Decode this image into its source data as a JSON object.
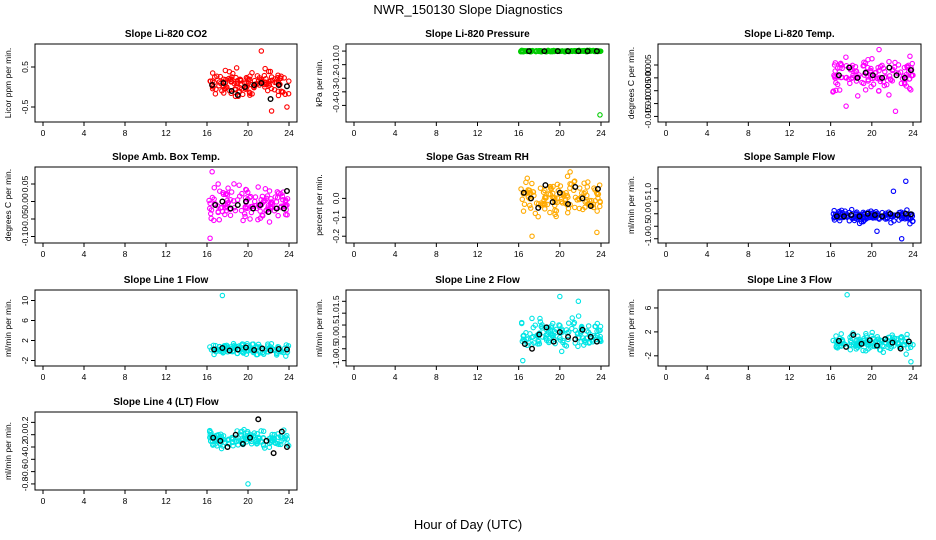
{
  "figure": {
    "title": "NWR_150130  Slope Diagnostics",
    "xlabel": "Hour of Day (UTC)"
  },
  "chart_data": [
    {
      "type": "scatter",
      "title": "Slope Li-820 CO2",
      "ylabel": "Licor ppm per min.",
      "xlim": [
        0,
        24
      ],
      "ylim": [
        -0.8,
        1.0
      ],
      "xticks": [
        "0",
        "4",
        "8",
        "12",
        "16",
        "20",
        "24"
      ],
      "yticks": [
        {
          "v": -0.5,
          "l": "-0.5"
        },
        {
          "v": 0.5,
          "l": "0.5"
        }
      ],
      "color": "#ff0000",
      "x_range": [
        16.2,
        24
      ],
      "center": 0.1,
      "spread": 0.25,
      "outliers": [
        {
          "x": 21.3,
          "y": 0.9
        },
        {
          "x": 22.3,
          "y": -0.6
        },
        {
          "x": 23.8,
          "y": -0.5
        }
      ],
      "black": [
        {
          "x": 16.5,
          "y": 0.05
        },
        {
          "x": 17.6,
          "y": 0.1
        },
        {
          "x": 18.4,
          "y": -0.1
        },
        {
          "x": 19.0,
          "y": -0.2
        },
        {
          "x": 19.7,
          "y": 0.0
        },
        {
          "x": 20.6,
          "y": 0.05
        },
        {
          "x": 21.3,
          "y": 0.1
        },
        {
          "x": 22.2,
          "y": -0.3
        },
        {
          "x": 23.0,
          "y": 0.05
        },
        {
          "x": 23.8,
          "y": 0.02
        }
      ]
    },
    {
      "type": "scatter",
      "title": "Slope Li-820 Pressure",
      "ylabel": "kPa per min.",
      "xlim": [
        0,
        24
      ],
      "ylim": [
        -0.5,
        0.03
      ],
      "xticks": [
        "0",
        "4",
        "8",
        "12",
        "16",
        "20",
        "24"
      ],
      "yticks": [
        {
          "v": 0.0,
          "l": "0.0"
        },
        {
          "v": -0.1,
          "l": "-0.1"
        },
        {
          "v": -0.2,
          "l": "-0.2"
        },
        {
          "v": -0.3,
          "l": "-0.3"
        },
        {
          "v": -0.4,
          "l": "-0.4"
        }
      ],
      "color": "#00cc00",
      "x_range": [
        16.2,
        24
      ],
      "center": 0.0,
      "spread": 0.004,
      "outliers": [
        {
          "x": 23.9,
          "y": -0.47
        }
      ],
      "black": [
        {
          "x": 17.0,
          "y": 0.0
        },
        {
          "x": 18.5,
          "y": 0.0
        },
        {
          "x": 19.8,
          "y": 0.0
        },
        {
          "x": 20.8,
          "y": 0.0
        },
        {
          "x": 21.8,
          "y": 0.0
        },
        {
          "x": 22.7,
          "y": 0.0
        },
        {
          "x": 23.6,
          "y": 0.0
        }
      ]
    },
    {
      "type": "scatter",
      "title": "Slope Li-820 Temp.",
      "ylabel": "degrees C per min.",
      "xlim": [
        0,
        24
      ],
      "ylim": [
        -0.016,
        0.012
      ],
      "xticks": [
        "0",
        "4",
        "8",
        "12",
        "16",
        "20",
        "24"
      ],
      "yticks": [
        {
          "v": 0.005,
          "l": "0.005"
        },
        {
          "v": 0.0,
          "l": "0.000"
        },
        {
          "v": -0.005,
          "l": "-0.005"
        },
        {
          "v": -0.01,
          "l": "-0.010"
        },
        {
          "v": -0.015,
          "l": "-0.015"
        }
      ],
      "color": "#ff00ff",
      "x_range": [
        16.2,
        24
      ],
      "center": 0.0008,
      "spread": 0.005,
      "outliers": [
        {
          "x": 20.7,
          "y": 0.011
        },
        {
          "x": 22.3,
          "y": -0.013
        },
        {
          "x": 17.5,
          "y": -0.011
        }
      ],
      "black": [
        {
          "x": 16.8,
          "y": 0.001
        },
        {
          "x": 17.8,
          "y": 0.004
        },
        {
          "x": 18.6,
          "y": 0.0
        },
        {
          "x": 19.4,
          "y": 0.002
        },
        {
          "x": 20.1,
          "y": 0.001
        },
        {
          "x": 21.0,
          "y": 0.0
        },
        {
          "x": 21.7,
          "y": 0.004
        },
        {
          "x": 22.4,
          "y": 0.001
        },
        {
          "x": 23.2,
          "y": 0.0
        },
        {
          "x": 23.8,
          "y": 0.003
        }
      ]
    },
    {
      "type": "scatter",
      "title": "Slope Amb. Box Temp.",
      "ylabel": "degrees C per min.",
      "xlim": [
        0,
        24
      ],
      "ylim": [
        -0.11,
        0.09
      ],
      "xticks": [
        "0",
        "4",
        "8",
        "12",
        "16",
        "20",
        "24"
      ],
      "yticks": [
        {
          "v": 0.05,
          "l": "0.05"
        },
        {
          "v": 0.0,
          "l": "0.00"
        },
        {
          "v": -0.05,
          "l": "-0.05"
        },
        {
          "v": -0.1,
          "l": "-0.10"
        }
      ],
      "color": "#ff00ff",
      "x_range": [
        16.2,
        24
      ],
      "center": -0.005,
      "spread": 0.04,
      "outliers": [
        {
          "x": 16.5,
          "y": 0.085
        },
        {
          "x": 16.3,
          "y": -0.105
        }
      ],
      "black": [
        {
          "x": 16.8,
          "y": -0.01
        },
        {
          "x": 17.5,
          "y": 0.0
        },
        {
          "x": 18.3,
          "y": -0.02
        },
        {
          "x": 19.0,
          "y": -0.01
        },
        {
          "x": 19.8,
          "y": 0.0
        },
        {
          "x": 20.5,
          "y": -0.02
        },
        {
          "x": 21.2,
          "y": -0.01
        },
        {
          "x": 22.0,
          "y": -0.03
        },
        {
          "x": 22.8,
          "y": -0.02
        },
        {
          "x": 23.5,
          "y": -0.02
        },
        {
          "x": 23.8,
          "y": 0.03
        }
      ]
    },
    {
      "type": "scatter",
      "title": "Slope Gas Stream RH",
      "ylabel": "percent per min.",
      "xlim": [
        0,
        24
      ],
      "ylim": [
        -0.22,
        0.15
      ],
      "xticks": [
        "0",
        "4",
        "8",
        "12",
        "16",
        "20",
        "24"
      ],
      "yticks": [
        {
          "v": 0.0,
          "l": "0.0"
        },
        {
          "v": -0.1,
          "l": "-0.1"
        },
        {
          "v": -0.2,
          "l": "-0.2"
        }
      ],
      "color": "#ffaa00",
      "x_range": [
        16.2,
        24
      ],
      "center": 0.0,
      "spread": 0.07,
      "outliers": [
        {
          "x": 17.3,
          "y": -0.2
        },
        {
          "x": 21.0,
          "y": 0.14
        },
        {
          "x": 23.6,
          "y": -0.18
        }
      ],
      "black": [
        {
          "x": 16.5,
          "y": 0.03
        },
        {
          "x": 17.2,
          "y": 0.0
        },
        {
          "x": 17.9,
          "y": -0.05
        },
        {
          "x": 18.6,
          "y": 0.07
        },
        {
          "x": 19.3,
          "y": -0.02
        },
        {
          "x": 20.0,
          "y": 0.03
        },
        {
          "x": 20.8,
          "y": -0.03
        },
        {
          "x": 21.5,
          "y": 0.06
        },
        {
          "x": 22.2,
          "y": 0.0
        },
        {
          "x": 23.0,
          "y": -0.04
        },
        {
          "x": 23.7,
          "y": 0.05
        }
      ]
    },
    {
      "type": "scatter",
      "title": "Slope Sample Flow",
      "ylabel": "ml/min per min.",
      "xlim": [
        0,
        24
      ],
      "ylim": [
        -1.05,
        1.75
      ],
      "xticks": [
        "0",
        "4",
        "8",
        "12",
        "16",
        "20",
        "24"
      ],
      "yticks": [
        {
          "v": 1.0,
          "l": "1.0"
        },
        {
          "v": 0.5,
          "l": "0.5"
        },
        {
          "v": 0.0,
          "l": "0.0"
        },
        {
          "v": -0.5,
          "l": "-0.5"
        },
        {
          "v": -1.0,
          "l": "-1.0"
        }
      ],
      "color": "#0000ff",
      "x_range": [
        16.2,
        24
      ],
      "center": -0.1,
      "spread": 0.2,
      "outliers": [
        {
          "x": 23.3,
          "y": 1.3
        },
        {
          "x": 22.9,
          "y": -1.0
        },
        {
          "x": 22.1,
          "y": 0.9
        },
        {
          "x": 20.5,
          "y": -0.7
        }
      ],
      "black": [
        {
          "x": 16.6,
          "y": -0.1
        },
        {
          "x": 17.3,
          "y": -0.1
        },
        {
          "x": 18.0,
          "y": -0.05
        },
        {
          "x": 18.8,
          "y": -0.1
        },
        {
          "x": 19.6,
          "y": 0.0
        },
        {
          "x": 20.3,
          "y": -0.05
        },
        {
          "x": 21.0,
          "y": -0.1
        },
        {
          "x": 21.8,
          "y": 0.0
        },
        {
          "x": 22.5,
          "y": -0.05
        },
        {
          "x": 23.3,
          "y": 0.0
        },
        {
          "x": 23.8,
          "y": -0.02
        }
      ]
    },
    {
      "type": "scatter",
      "title": "Slope Line 1 Flow",
      "ylabel": "ml/min per min.",
      "xlim": [
        0,
        24
      ],
      "ylim": [
        -2.5,
        11.5
      ],
      "xticks": [
        "0",
        "4",
        "8",
        "12",
        "16",
        "20",
        "24"
      ],
      "yticks": [
        {
          "v": 10,
          "l": "10"
        },
        {
          "v": 6,
          "l": "6"
        },
        {
          "v": 2,
          "l": "2"
        },
        {
          "v": -2,
          "l": "-2"
        }
      ],
      "color": "#00e5e5",
      "x_range": [
        16.2,
        24
      ],
      "center": 0.3,
      "spread": 0.8,
      "outliers": [
        {
          "x": 17.5,
          "y": 11.0
        }
      ],
      "black": [
        {
          "x": 16.7,
          "y": 0.2
        },
        {
          "x": 17.5,
          "y": 0.5
        },
        {
          "x": 18.2,
          "y": 0.0
        },
        {
          "x": 19.0,
          "y": 0.2
        },
        {
          "x": 19.8,
          "y": 0.6
        },
        {
          "x": 20.6,
          "y": 0.1
        },
        {
          "x": 21.4,
          "y": 0.4
        },
        {
          "x": 22.2,
          "y": 0.0
        },
        {
          "x": 23.0,
          "y": 0.3
        },
        {
          "x": 23.8,
          "y": 0.2
        }
      ]
    },
    {
      "type": "scatter",
      "title": "Slope Line 2 Flow",
      "ylabel": "ml/min per min.",
      "xlim": [
        0,
        24
      ],
      "ylim": [
        -1.1,
        1.85
      ],
      "xticks": [
        "0",
        "4",
        "8",
        "12",
        "16",
        "20",
        "24"
      ],
      "yticks": [
        {
          "v": 1.5,
          "l": "1.5"
        },
        {
          "v": 1.0,
          "l": "1.0"
        },
        {
          "v": 0.5,
          "l": "0.5"
        },
        {
          "v": 0.0,
          "l": "0.0"
        },
        {
          "v": -0.5,
          "l": "-0.5"
        },
        {
          "v": -1.0,
          "l": "-1.0"
        }
      ],
      "color": "#00e5e5",
      "x_range": [
        16.2,
        24
      ],
      "center": 0.15,
      "spread": 0.45,
      "outliers": [
        {
          "x": 20.0,
          "y": 1.7
        },
        {
          "x": 16.4,
          "y": -1.0
        },
        {
          "x": 21.8,
          "y": 1.5
        }
      ],
      "black": [
        {
          "x": 16.6,
          "y": -0.3
        },
        {
          "x": 17.3,
          "y": -0.5
        },
        {
          "x": 18.0,
          "y": 0.1
        },
        {
          "x": 18.7,
          "y": 0.4
        },
        {
          "x": 19.4,
          "y": -0.2
        },
        {
          "x": 20.0,
          "y": 0.2
        },
        {
          "x": 20.8,
          "y": 0.0
        },
        {
          "x": 21.5,
          "y": -0.1
        },
        {
          "x": 22.2,
          "y": 0.3
        },
        {
          "x": 23.0,
          "y": 0.0
        },
        {
          "x": 23.6,
          "y": -0.2
        }
      ]
    },
    {
      "type": "scatter",
      "title": "Slope Line 3 Flow",
      "ylabel": "ml/min per min.",
      "xlim": [
        0,
        24
      ],
      "ylim": [
        -3.2,
        8.5
      ],
      "xticks": [
        "0",
        "4",
        "8",
        "12",
        "16",
        "20",
        "24"
      ],
      "yticks": [
        {
          "v": 6,
          "l": "6"
        },
        {
          "v": 2,
          "l": "2"
        },
        {
          "v": -2,
          "l": "-2"
        }
      ],
      "color": "#00e5e5",
      "x_range": [
        16.2,
        24
      ],
      "center": 0.2,
      "spread": 1.2,
      "outliers": [
        {
          "x": 17.6,
          "y": 8.2
        },
        {
          "x": 23.8,
          "y": -3.0
        }
      ],
      "black": [
        {
          "x": 16.8,
          "y": 0.5
        },
        {
          "x": 17.5,
          "y": -0.5
        },
        {
          "x": 18.2,
          "y": 1.5
        },
        {
          "x": 19.0,
          "y": 0.0
        },
        {
          "x": 19.8,
          "y": 0.6
        },
        {
          "x": 20.5,
          "y": -0.3
        },
        {
          "x": 21.3,
          "y": 0.8
        },
        {
          "x": 22.0,
          "y": 0.2
        },
        {
          "x": 22.8,
          "y": -0.8
        },
        {
          "x": 23.6,
          "y": 0.4
        }
      ]
    },
    {
      "type": "scatter",
      "title": "Slope Line 4 (LT) Flow",
      "ylabel": "ml/min per min.",
      "xlim": [
        0,
        24
      ],
      "ylim": [
        -0.85,
        0.32
      ],
      "xticks": [
        "0",
        "4",
        "8",
        "12",
        "16",
        "20",
        "24"
      ],
      "yticks": [
        {
          "v": 0.2,
          "l": "0.2"
        },
        {
          "v": 0.0,
          "l": "0.0"
        },
        {
          "v": -0.2,
          "l": "-0.2"
        },
        {
          "v": -0.4,
          "l": "-0.4"
        },
        {
          "v": -0.6,
          "l": "-0.6"
        },
        {
          "v": -0.8,
          "l": "-0.8"
        }
      ],
      "color": "#00e5e5",
      "x_range": [
        16.2,
        24
      ],
      "center": -0.07,
      "spread": 0.1,
      "outliers": [
        {
          "x": 20.0,
          "y": -0.8
        }
      ],
      "black": [
        {
          "x": 16.6,
          "y": -0.05
        },
        {
          "x": 17.3,
          "y": -0.1
        },
        {
          "x": 18.0,
          "y": -0.2
        },
        {
          "x": 18.8,
          "y": 0.0
        },
        {
          "x": 19.5,
          "y": -0.15
        },
        {
          "x": 20.2,
          "y": -0.05
        },
        {
          "x": 21.0,
          "y": 0.25
        },
        {
          "x": 21.8,
          "y": -0.1
        },
        {
          "x": 22.5,
          "y": -0.3
        },
        {
          "x": 23.3,
          "y": 0.05
        },
        {
          "x": 23.8,
          "y": -0.2
        }
      ]
    }
  ]
}
